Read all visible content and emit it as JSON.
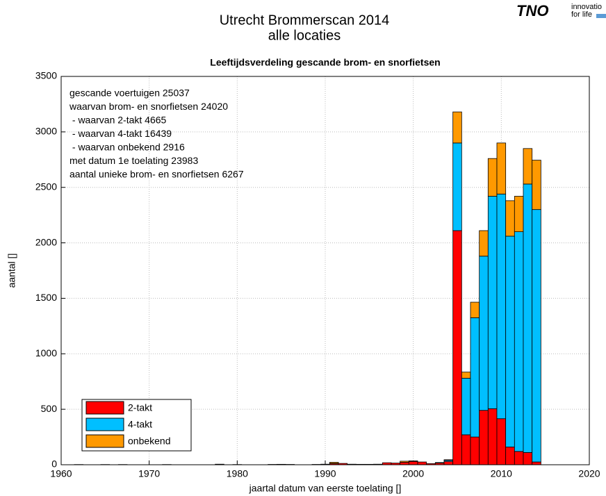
{
  "chart_data": {
    "type": "bar",
    "title": [
      "Utrecht Brommerscan 2014",
      "alle locaties"
    ],
    "subtitle": "Leeftijdsverdeling gescande brom- en snorfietsen",
    "logo": {
      "text": "TNO",
      "tagline": [
        "innovatio",
        "for life"
      ]
    },
    "xlabel": "jaartal datum van eerste toelating []",
    "ylabel": "aantal []",
    "annotations": [
      "gescande voertuigen 25037",
      "waarvan brom- en snorfietsen 24020",
      " - waarvan 2-takt 4665",
      " - waarvan 4-takt 16439",
      " - waarvan onbekend 2916",
      "met datum 1e toelating 23983",
      "aantal unieke brom- en snorfietsen 6267"
    ],
    "stacked": true,
    "grid": true,
    "legend": "lower left",
    "x": [
      1962,
      1965,
      1967,
      1972,
      1978,
      1980,
      1984,
      1985,
      1986,
      1989,
      1990,
      1991,
      1992,
      1993,
      1994,
      1995,
      1996,
      1997,
      1998,
      1999,
      2000,
      2001,
      2002,
      2003,
      2004,
      2005,
      2006,
      2007,
      2008,
      2009,
      2010,
      2011,
      2012,
      2013,
      2014
    ],
    "series": [
      {
        "name": "2-takt",
        "color": "#ff0000",
        "values": [
          2,
          2,
          2,
          2,
          5,
          2,
          3,
          4,
          3,
          3,
          5,
          10,
          12,
          5,
          4,
          4,
          5,
          18,
          15,
          22,
          30,
          25,
          10,
          15,
          30,
          2110,
          270,
          250,
          490,
          505,
          415,
          160,
          120,
          110,
          25
        ]
      },
      {
        "name": "4-takt",
        "color": "#00bfff",
        "values": [
          0,
          0,
          0,
          0,
          0,
          0,
          0,
          0,
          0,
          0,
          0,
          2,
          0,
          0,
          0,
          0,
          0,
          0,
          0,
          0,
          0,
          0,
          0,
          3,
          10,
          790,
          510,
          1075,
          1390,
          1915,
          2025,
          1900,
          1980,
          2420,
          2275
        ]
      },
      {
        "name": "onbekend",
        "color": "#ff9900",
        "values": [
          0,
          0,
          0,
          0,
          0,
          0,
          0,
          0,
          0,
          0,
          0,
          10,
          0,
          0,
          0,
          0,
          0,
          0,
          0,
          10,
          5,
          0,
          0,
          2,
          5,
          280,
          55,
          140,
          230,
          340,
          460,
          320,
          320,
          320,
          445
        ]
      }
    ],
    "xlim": [
      1960,
      2020
    ],
    "xticks": [
      1960,
      1970,
      1980,
      1990,
      2000,
      2010,
      2020
    ],
    "ylim": [
      0,
      3500
    ],
    "yticks": [
      0,
      500,
      1000,
      1500,
      2000,
      2500,
      3000,
      3500
    ]
  }
}
